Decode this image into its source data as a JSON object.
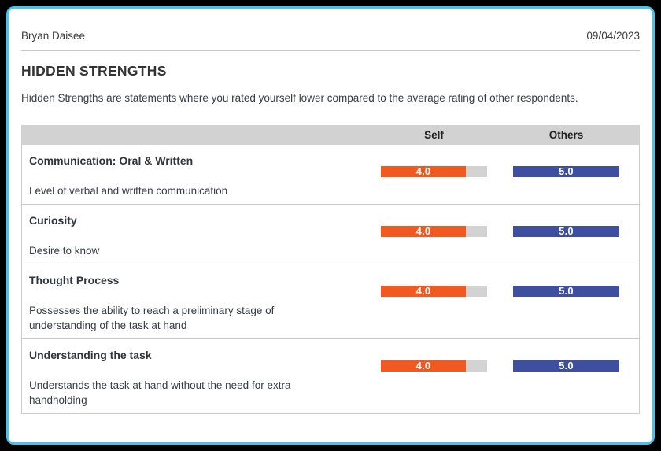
{
  "header": {
    "name": "Bryan Daisee",
    "date": "09/04/2023"
  },
  "page": {
    "title": "HIDDEN STRENGTHS",
    "description": "Hidden Strengths are statements where you rated yourself lower compared to the average rating of other respondents."
  },
  "table": {
    "columns": [
      "Self",
      "Others"
    ],
    "max_rating": 5,
    "rows": [
      {
        "title": "Communication: Oral & Written",
        "description": "Level of verbal and written communication",
        "self": 4.0,
        "self_label": "4.0",
        "others": 5.0,
        "others_label": "5.0"
      },
      {
        "title": "Curiosity",
        "description": "Desire to know",
        "self": 4.0,
        "self_label": "4.0",
        "others": 5.0,
        "others_label": "5.0"
      },
      {
        "title": "Thought Process",
        "description": "Possesses the ability to reach a preliminary stage of understanding of the task at hand",
        "self": 4.0,
        "self_label": "4.0",
        "others": 5.0,
        "others_label": "5.0"
      },
      {
        "title": "Understanding the task",
        "description": "Understands the task at hand without the need for extra handholding",
        "self": 4.0,
        "self_label": "4.0",
        "others": 5.0,
        "others_label": "5.0"
      }
    ]
  },
  "colors": {
    "self_bar": "#F0591F",
    "others_bar": "#3E4FA0",
    "bar_track": "#D3D3D3",
    "table_header_bg": "#D2D2D2",
    "card_border": "#49C3EC",
    "outer_background": "#000000"
  }
}
